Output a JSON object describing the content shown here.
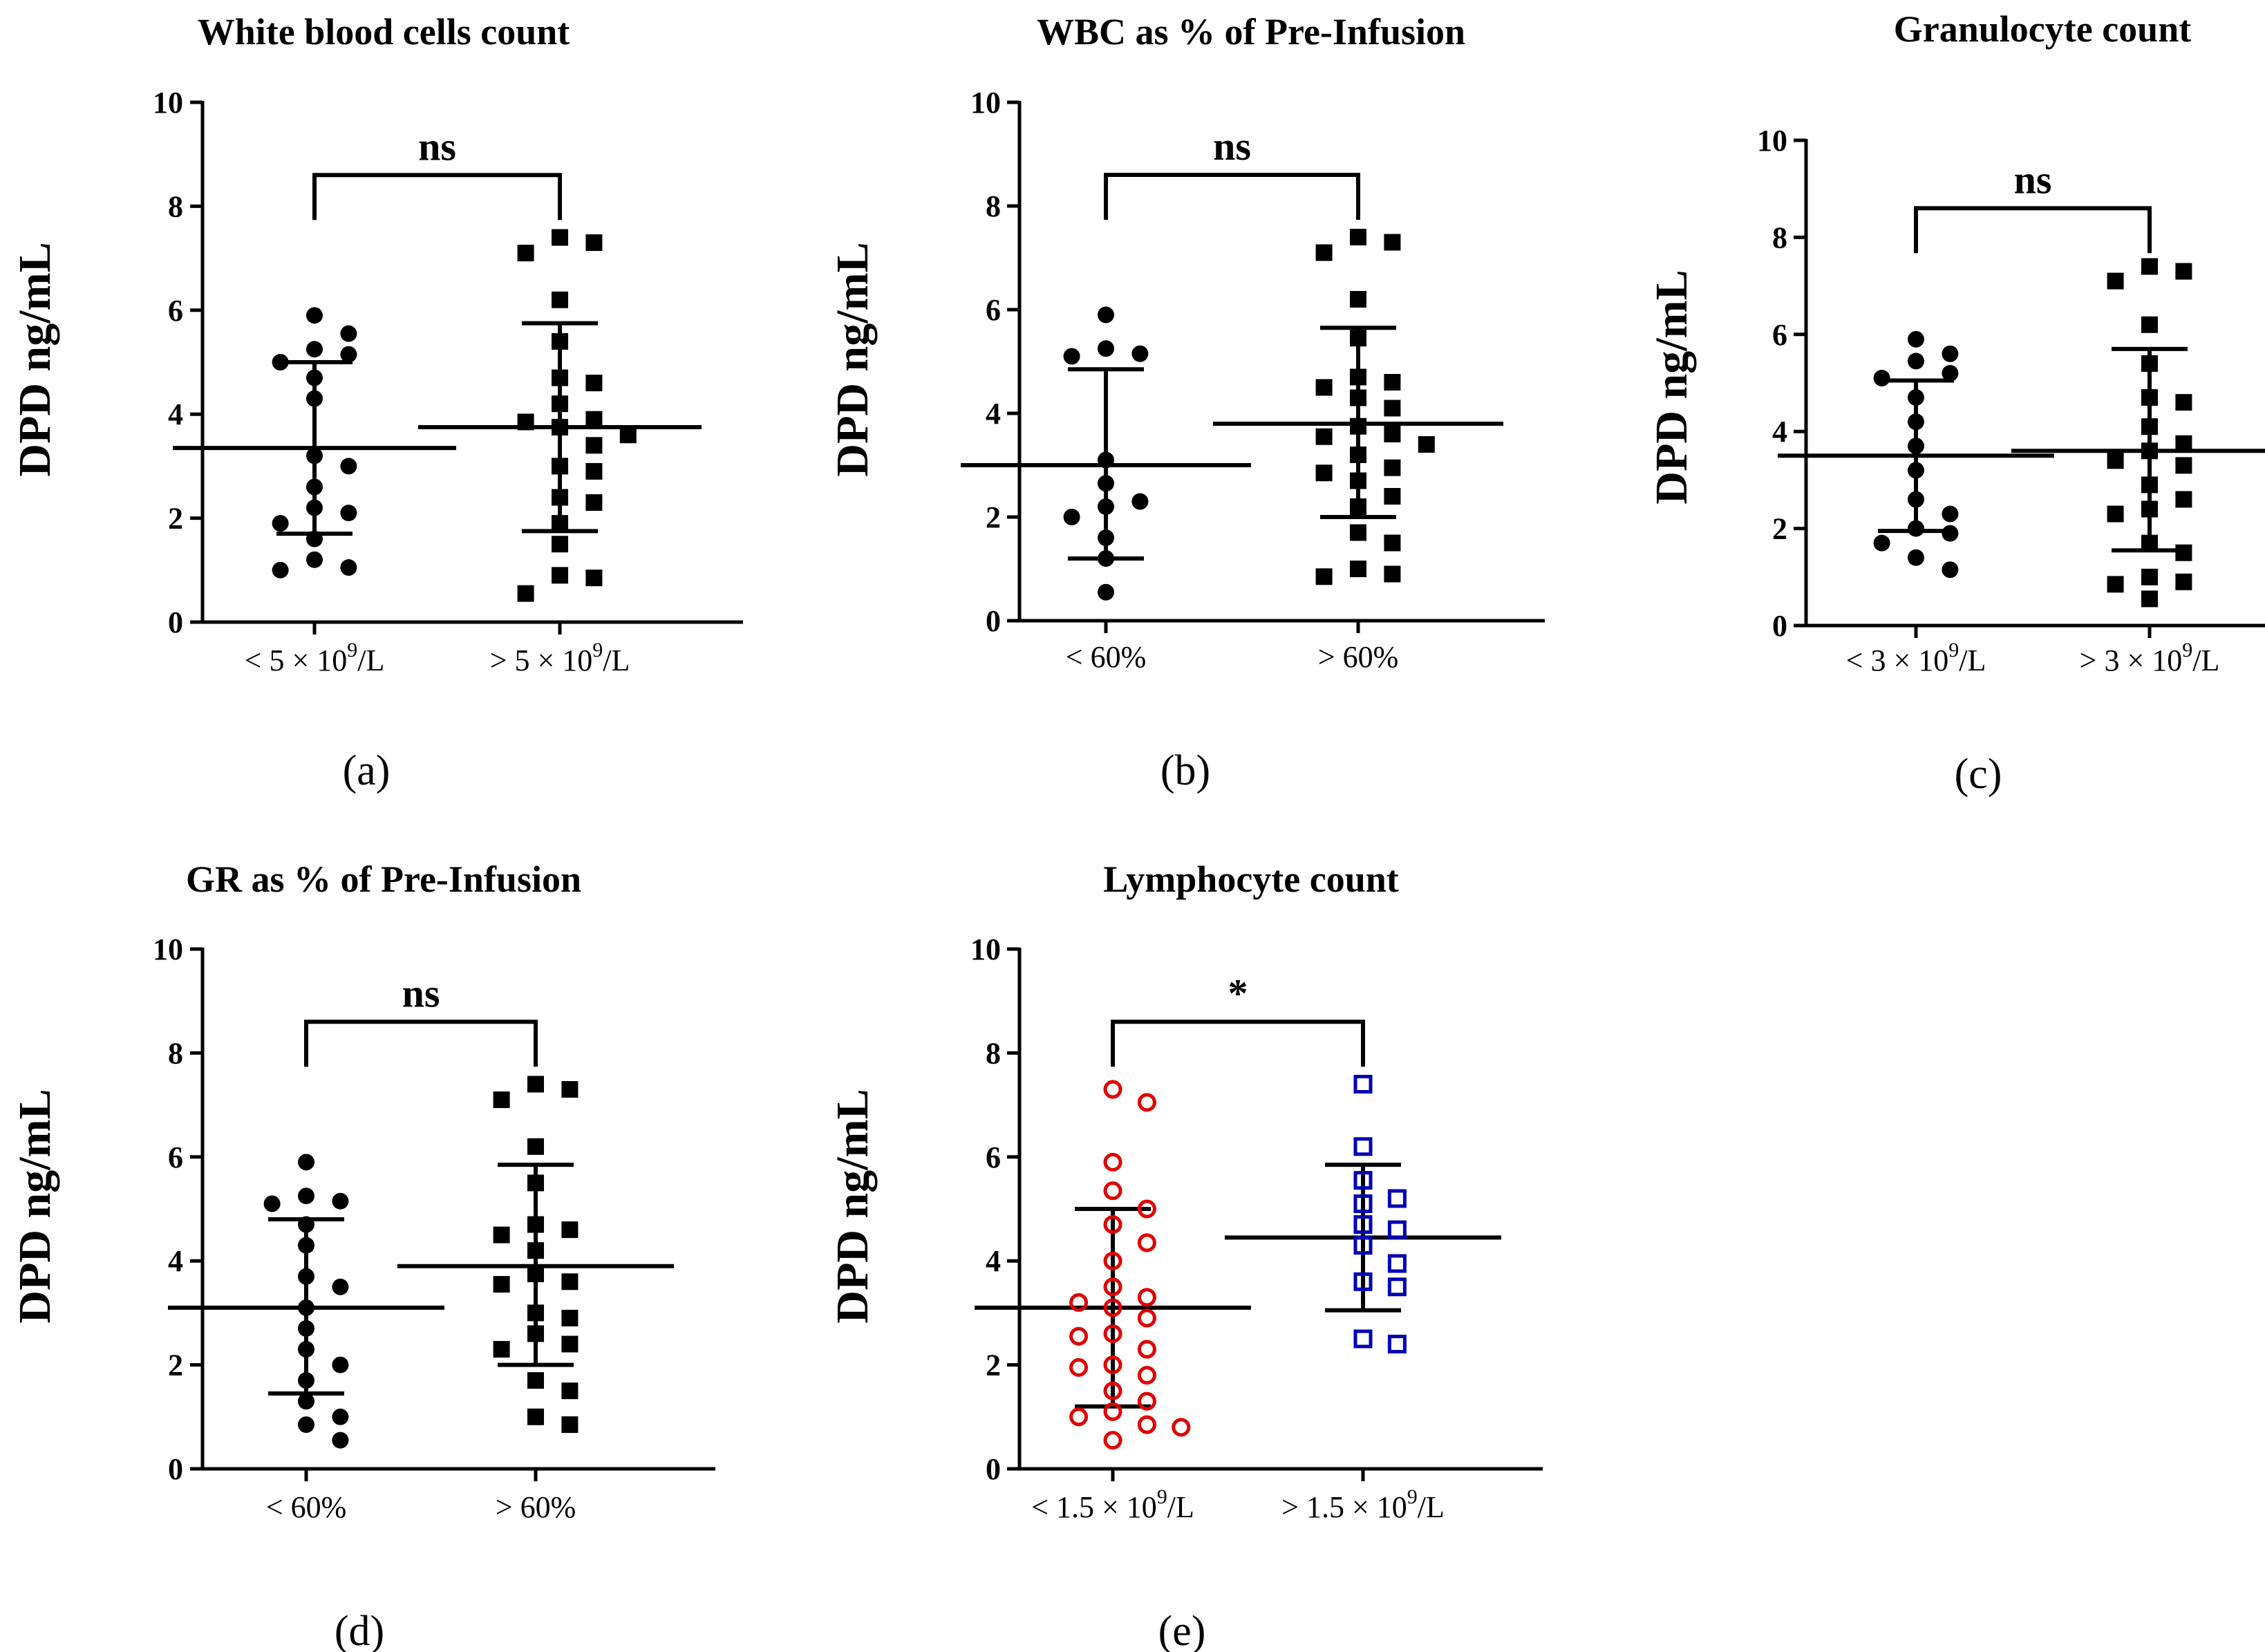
{
  "colors": {
    "black": "#000000",
    "red": "#e00000",
    "blue": "#0000b4"
  },
  "chart_data": [
    {
      "type": "scatter",
      "panel_label": "(a)",
      "title": "White blood cells count",
      "ylabel": "DPD ng/mL",
      "ylim": [
        0,
        10
      ],
      "yticks": [
        "0",
        "2",
        "4",
        "6",
        "8",
        "10"
      ],
      "significance": "ns",
      "categories": [
        {
          "label": "< 5 × 10",
          "sup": "9",
          "unit": "/L"
        },
        {
          "label": "> 5 × 10",
          "sup": "9",
          "unit": "/L"
        }
      ],
      "groups": [
        {
          "name": "< 5 × 10^9/L",
          "marker": "circle",
          "color": "#000000",
          "mean": 3.35,
          "sd_low": 1.7,
          "sd_high": 5.0,
          "values": [
            5.9,
            5.55,
            5.25,
            5.15,
            4.7,
            4.3,
            3.2,
            3.0,
            2.6,
            2.1,
            1.9,
            1.6,
            1.2,
            1.05,
            1.0,
            5.0,
            2.2
          ]
        },
        {
          "name": "> 5 × 10^9/L",
          "marker": "square",
          "color": "#000000",
          "mean": 3.75,
          "sd_low": 1.75,
          "sd_high": 5.75,
          "values": [
            7.4,
            7.3,
            7.1,
            6.2,
            5.4,
            4.7,
            4.6,
            4.2,
            3.9,
            3.85,
            3.75,
            3.6,
            3.4,
            3.0,
            2.9,
            2.4,
            2.3,
            1.9,
            1.5,
            0.9,
            0.85,
            0.55
          ]
        }
      ]
    },
    {
      "type": "scatter",
      "panel_label": "(b)",
      "title": "WBC as % of Pre-Infusion",
      "ylabel": "DPD ng/mL",
      "ylim": [
        0,
        10
      ],
      "yticks": [
        "0",
        "2",
        "4",
        "6",
        "8",
        "10"
      ],
      "significance": "ns",
      "categories": [
        {
          "label": "< 60%",
          "sup": "",
          "unit": ""
        },
        {
          "label": "> 60%",
          "sup": "",
          "unit": ""
        }
      ],
      "groups": [
        {
          "name": "< 60%",
          "marker": "circle",
          "color": "#000000",
          "mean": 3.0,
          "sd_low": 1.2,
          "sd_high": 4.85,
          "values": [
            5.9,
            5.25,
            5.1,
            5.15,
            3.1,
            2.65,
            2.3,
            2.2,
            2.0,
            1.6,
            1.2,
            0.55
          ]
        },
        {
          "name": "> 60%",
          "marker": "square",
          "color": "#000000",
          "mean": 3.8,
          "sd_low": 2.0,
          "sd_high": 5.65,
          "values": [
            7.4,
            7.3,
            7.1,
            6.2,
            5.45,
            4.7,
            4.6,
            4.5,
            4.3,
            4.1,
            3.75,
            3.6,
            3.55,
            3.4,
            3.2,
            2.95,
            2.85,
            2.7,
            2.4,
            2.2,
            1.7,
            1.5,
            1.0,
            0.9,
            0.85
          ]
        }
      ]
    },
    {
      "type": "scatter",
      "panel_label": "(c)",
      "title": "Granulocyte count",
      "ylabel": "DPD ng/mL",
      "ylim": [
        0,
        10
      ],
      "yticks": [
        "0",
        "2",
        "4",
        "6",
        "8",
        "10"
      ],
      "significance": "ns",
      "categories": [
        {
          "label": "< 3 × 10",
          "sup": "9",
          "unit": "/L"
        },
        {
          "label": "> 3 × 10",
          "sup": "9",
          "unit": "/L"
        }
      ],
      "groups": [
        {
          "name": "< 3 × 10^9/L",
          "marker": "circle",
          "color": "#000000",
          "mean": 3.5,
          "sd_low": 1.95,
          "sd_high": 5.05,
          "values": [
            5.9,
            5.6,
            5.45,
            5.2,
            5.1,
            4.7,
            4.2,
            3.7,
            3.2,
            2.6,
            2.3,
            1.9,
            1.7,
            1.4,
            1.15,
            2.0
          ]
        },
        {
          "name": "> 3 × 10^9/L",
          "marker": "square",
          "color": "#000000",
          "mean": 3.6,
          "sd_low": 1.55,
          "sd_high": 5.7,
          "values": [
            7.4,
            7.3,
            7.1,
            6.2,
            5.4,
            4.7,
            4.6,
            4.1,
            3.75,
            3.6,
            3.4,
            3.3,
            2.9,
            2.6,
            2.4,
            2.3,
            1.7,
            1.5,
            1.0,
            0.9,
            0.85,
            0.55
          ]
        }
      ]
    },
    {
      "type": "scatter",
      "panel_label": "(d)",
      "title": "GR as % of Pre-Infusion",
      "ylabel": "DPD ng/mL",
      "ylim": [
        0,
        10
      ],
      "yticks": [
        "0",
        "2",
        "4",
        "6",
        "8",
        "10"
      ],
      "significance": "ns",
      "categories": [
        {
          "label": "< 60%",
          "sup": "",
          "unit": ""
        },
        {
          "label": "> 60%",
          "sup": "",
          "unit": ""
        }
      ],
      "groups": [
        {
          "name": "< 60%",
          "marker": "circle",
          "color": "#000000",
          "mean": 3.1,
          "sd_low": 1.45,
          "sd_high": 4.8,
          "values": [
            5.9,
            5.25,
            5.15,
            5.1,
            4.7,
            4.3,
            3.7,
            3.5,
            3.1,
            2.7,
            2.3,
            2.0,
            1.7,
            1.3,
            1.0,
            0.85,
            0.55
          ]
        },
        {
          "name": "> 60%",
          "marker": "square",
          "color": "#000000",
          "mean": 3.9,
          "sd_low": 2.0,
          "sd_high": 5.85,
          "values": [
            7.4,
            7.3,
            7.1,
            6.2,
            5.5,
            4.7,
            4.6,
            4.5,
            4.2,
            3.75,
            3.6,
            3.55,
            3.0,
            2.9,
            2.6,
            2.4,
            2.3,
            1.7,
            1.5,
            1.0,
            0.85
          ]
        }
      ]
    },
    {
      "type": "scatter",
      "panel_label": "(e)",
      "title": "Lymphocyte count",
      "ylabel": "DPD ng/mL",
      "ylim": [
        0,
        10
      ],
      "yticks": [
        "0",
        "2",
        "4",
        "6",
        "8",
        "10"
      ],
      "significance": "*",
      "categories": [
        {
          "label": "< 1.5 × 10",
          "sup": "9",
          "unit": "/L"
        },
        {
          "label": "> 1.5 × 10",
          "sup": "9",
          "unit": "/L"
        }
      ],
      "groups": [
        {
          "name": "< 1.5 × 10^9/L",
          "marker": "open-circle",
          "color": "#e00000",
          "mean": 3.1,
          "sd_low": 1.2,
          "sd_high": 5.0,
          "values": [
            7.3,
            7.05,
            5.9,
            5.35,
            5.0,
            4.7,
            4.35,
            4.0,
            3.5,
            3.3,
            3.2,
            3.1,
            2.9,
            2.6,
            2.55,
            2.3,
            2.0,
            1.95,
            1.8,
            1.5,
            1.3,
            1.1,
            1.0,
            0.85,
            0.8,
            0.55
          ]
        },
        {
          "name": "> 1.5 × 10^9/L",
          "marker": "open-square",
          "color": "#0000b4",
          "mean": 4.45,
          "sd_low": 3.05,
          "sd_high": 5.85,
          "values": [
            7.4,
            6.2,
            5.55,
            5.2,
            5.1,
            4.7,
            4.6,
            4.3,
            3.95,
            3.6,
            3.5,
            2.5,
            2.4
          ]
        }
      ]
    }
  ]
}
